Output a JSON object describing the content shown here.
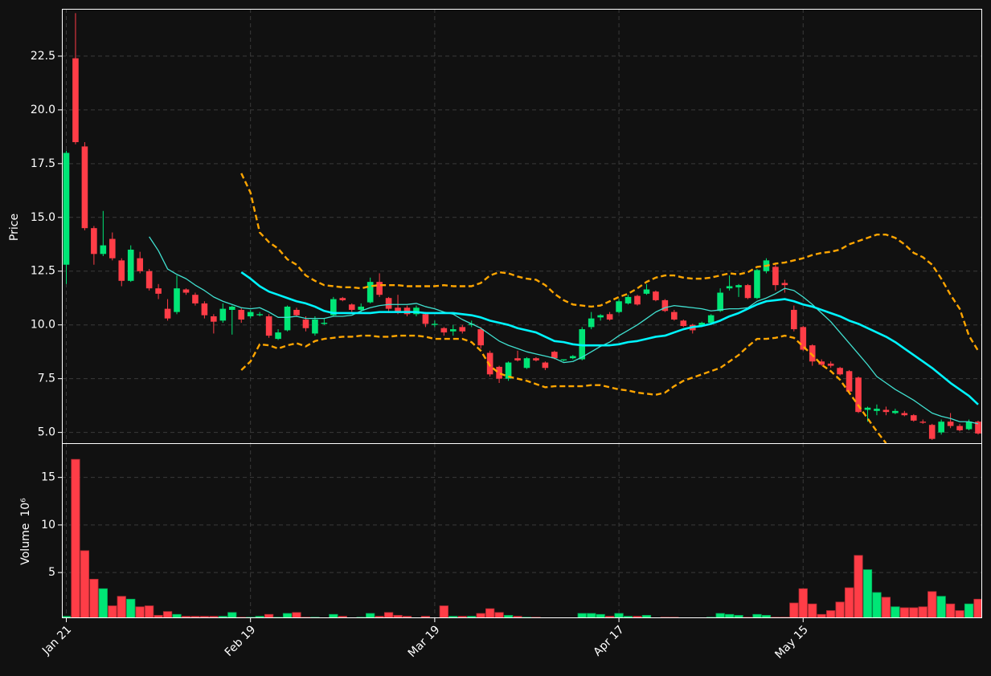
{
  "chart_data": {
    "type": "candlestick",
    "categories": [
      "Jan 21",
      null,
      null,
      null,
      null,
      null,
      null,
      null,
      null,
      null,
      null,
      null,
      null,
      null,
      null,
      null,
      null,
      null,
      null,
      null,
      "Feb 19",
      null,
      null,
      null,
      null,
      null,
      null,
      null,
      null,
      null,
      null,
      null,
      null,
      null,
      null,
      null,
      null,
      null,
      null,
      null,
      "Mar 19",
      null,
      null,
      null,
      null,
      null,
      null,
      null,
      null,
      null,
      null,
      null,
      null,
      null,
      null,
      null,
      null,
      null,
      null,
      null,
      "Apr 17",
      null,
      null,
      null,
      null,
      null,
      null,
      null,
      null,
      null,
      null,
      null,
      null,
      null,
      null,
      null,
      null,
      null,
      null,
      null,
      "May 15",
      null,
      null,
      null,
      null,
      null,
      null,
      null,
      null,
      null,
      null,
      null,
      null,
      null,
      null,
      null,
      null,
      null,
      null,
      null
    ],
    "open": [
      12.8,
      22.4,
      18.3,
      14.5,
      13.3,
      14.0,
      13.0,
      12.05,
      13.1,
      12.5,
      11.7,
      10.75,
      10.6,
      11.65,
      11.4,
      11.0,
      10.4,
      10.2,
      10.7,
      10.7,
      10.4,
      10.45,
      10.4,
      9.35,
      9.75,
      10.7,
      10.25,
      9.6,
      10.05,
      10.45,
      11.25,
      10.95,
      10.7,
      11.05,
      12.0,
      11.25,
      10.8,
      10.8,
      10.5,
      10.5,
      10.0,
      9.85,
      9.7,
      9.9,
      10.0,
      9.8,
      8.7,
      8.05,
      7.5,
      8.45,
      8.0,
      8.45,
      8.25,
      8.75,
      8.35,
      8.45,
      8.4,
      9.9,
      10.35,
      10.5,
      10.6,
      11.0,
      11.35,
      11.45,
      11.55,
      11.15,
      10.6,
      10.2,
      10.0,
      9.95,
      10.1,
      10.65,
      11.7,
      11.75,
      11.85,
      11.25,
      12.5,
      12.7,
      11.95,
      10.7,
      9.9,
      9.05,
      8.3,
      8.2,
      8.0,
      7.85,
      7.55,
      6.05,
      6.0,
      6.05,
      5.9,
      5.9,
      5.8,
      5.5,
      5.35,
      5.0,
      5.5,
      5.3,
      5.15,
      5.5
    ],
    "high": [
      18.1,
      24.5,
      18.5,
      14.6,
      15.3,
      14.3,
      13.1,
      13.7,
      13.4,
      12.6,
      11.9,
      11.2,
      12.3,
      11.7,
      11.5,
      11.1,
      10.5,
      11.0,
      10.9,
      10.8,
      10.7,
      10.6,
      10.5,
      9.8,
      10.9,
      10.8,
      10.4,
      10.4,
      10.3,
      11.3,
      11.3,
      11.0,
      11.0,
      12.2,
      12.4,
      11.3,
      11.4,
      10.9,
      10.9,
      10.6,
      10.2,
      9.9,
      10.0,
      10.0,
      10.2,
      9.9,
      8.8,
      8.1,
      8.3,
      8.8,
      8.5,
      8.5,
      8.3,
      8.8,
      8.4,
      8.6,
      9.9,
      10.6,
      10.5,
      10.6,
      11.2,
      11.4,
      11.4,
      11.9,
      11.6,
      11.2,
      10.7,
      10.25,
      10.05,
      10.15,
      10.5,
      11.7,
      12.3,
      11.9,
      11.9,
      12.6,
      13.1,
      12.9,
      12.1,
      10.9,
      9.95,
      9.1,
      8.4,
      8.3,
      8.05,
      7.9,
      7.6,
      6.2,
      6.3,
      6.2,
      6.1,
      6.0,
      5.85,
      5.6,
      5.4,
      5.6,
      5.9,
      5.4,
      5.6,
      5.55
    ],
    "low": [
      11.9,
      18.4,
      14.4,
      12.8,
      13.2,
      13.0,
      11.8,
      12.0,
      12.4,
      11.6,
      11.2,
      10.2,
      10.5,
      11.4,
      10.9,
      10.3,
      9.6,
      10.1,
      9.55,
      10.1,
      10.3,
      10.4,
      9.4,
      9.3,
      9.7,
      10.4,
      9.7,
      9.5,
      10.0,
      10.4,
      11.1,
      10.6,
      10.6,
      11.0,
      11.3,
      10.6,
      10.5,
      10.4,
      10.4,
      9.9,
      9.9,
      9.5,
      9.5,
      9.6,
      9.9,
      8.9,
      7.6,
      7.3,
      7.4,
      8.3,
      7.95,
      8.3,
      7.9,
      8.4,
      8.3,
      8.4,
      8.35,
      9.8,
      10.2,
      10.2,
      10.55,
      10.95,
      10.9,
      11.4,
      11.1,
      10.6,
      10.2,
      9.9,
      9.6,
      9.9,
      10.05,
      10.6,
      11.6,
      11.3,
      11.2,
      11.2,
      12.4,
      11.6,
      11.5,
      9.7,
      8.8,
      8.1,
      8.1,
      8.0,
      7.65,
      6.8,
      5.9,
      5.5,
      5.8,
      5.8,
      5.85,
      5.75,
      5.5,
      5.4,
      4.65,
      4.9,
      5.2,
      5.05,
      5.1,
      4.9
    ],
    "close": [
      18.0,
      18.5,
      14.5,
      13.3,
      13.7,
      13.1,
      12.05,
      13.5,
      12.5,
      11.7,
      11.45,
      10.3,
      11.7,
      11.5,
      11.0,
      10.45,
      10.15,
      10.75,
      10.85,
      10.25,
      10.6,
      10.5,
      9.5,
      9.65,
      10.85,
      10.45,
      9.85,
      10.25,
      10.1,
      11.2,
      11.15,
      10.7,
      10.85,
      12.0,
      11.4,
      10.75,
      10.6,
      10.5,
      10.8,
      10.05,
      10.05,
      9.65,
      9.8,
      9.7,
      10.05,
      9.05,
      7.7,
      7.5,
      8.25,
      8.35,
      8.45,
      8.35,
      8.0,
      8.45,
      8.4,
      8.55,
      9.8,
      10.3,
      10.45,
      10.25,
      11.1,
      11.3,
      10.95,
      11.65,
      11.15,
      10.65,
      10.25,
      9.95,
      9.75,
      10.1,
      10.45,
      11.5,
      11.8,
      11.85,
      11.25,
      12.55,
      13.0,
      11.85,
      11.85,
      9.8,
      8.85,
      8.3,
      8.15,
      8.1,
      7.7,
      6.9,
      5.95,
      6.15,
      6.1,
      5.95,
      6.0,
      5.8,
      5.55,
      5.45,
      4.7,
      5.5,
      5.3,
      5.1,
      5.5,
      4.95
    ],
    "up_color": "#00e676",
    "down_color": "#ff3d47",
    "ylabel": "Price",
    "ylim": [
      4.5,
      24.7
    ],
    "yticks": [
      {
        "value": 5,
        "label": "5.0"
      },
      7.5,
      {
        "value": 10,
        "label": "10.0"
      },
      12.5,
      {
        "value": 15,
        "label": "15.0"
      },
      17.5,
      {
        "value": 20,
        "label": "20.0"
      },
      22.5
    ],
    "grid": true,
    "lines": [
      {
        "color": "#40e0d0",
        "width": 1.3,
        "dashed": false,
        "values": [
          null,
          null,
          null,
          null,
          null,
          null,
          null,
          null,
          null,
          14.1,
          13.45,
          12.6,
          12.35,
          12.15,
          11.85,
          11.6,
          11.3,
          11.1,
          10.95,
          10.8,
          10.75,
          10.8,
          10.6,
          10.35,
          10.35,
          10.4,
          10.3,
          10.3,
          10.3,
          10.4,
          10.4,
          10.45,
          10.65,
          10.8,
          10.9,
          10.95,
          10.95,
          10.95,
          11.0,
          10.85,
          10.75,
          10.6,
          10.5,
          10.25,
          10.05,
          9.85,
          9.55,
          9.25,
          9.05,
          8.9,
          8.75,
          8.65,
          8.55,
          8.45,
          8.25,
          8.3,
          8.5,
          8.75,
          9.0,
          9.2,
          9.5,
          9.75,
          10.0,
          10.3,
          10.6,
          10.8,
          10.9,
          10.85,
          10.8,
          10.75,
          10.65,
          10.7,
          10.75,
          10.75,
          10.8,
          11.1,
          11.25,
          11.45,
          11.7,
          11.6,
          11.3,
          10.95,
          10.55,
          10.15,
          9.65,
          9.15,
          8.65,
          8.15,
          7.6,
          7.3,
          7.0,
          6.75,
          6.5,
          6.2,
          5.9,
          5.75,
          5.65,
          5.5,
          5.5,
          5.4
        ]
      },
      {
        "color": "#00f5ff",
        "width": 2.6,
        "dashed": false,
        "values": [
          null,
          null,
          null,
          null,
          null,
          null,
          null,
          null,
          null,
          null,
          null,
          null,
          null,
          null,
          null,
          null,
          null,
          null,
          null,
          12.45,
          12.15,
          11.8,
          11.55,
          11.4,
          11.25,
          11.1,
          11.0,
          10.85,
          10.65,
          10.55,
          10.55,
          10.55,
          10.55,
          10.55,
          10.6,
          10.6,
          10.6,
          10.6,
          10.6,
          10.55,
          10.55,
          10.55,
          10.55,
          10.5,
          10.45,
          10.35,
          10.2,
          10.1,
          10.0,
          9.85,
          9.75,
          9.65,
          9.45,
          9.25,
          9.2,
          9.1,
          9.05,
          9.05,
          9.05,
          9.05,
          9.1,
          9.2,
          9.25,
          9.35,
          9.45,
          9.5,
          9.65,
          9.8,
          9.9,
          9.95,
          10.05,
          10.2,
          10.4,
          10.55,
          10.75,
          10.95,
          11.1,
          11.15,
          11.2,
          11.1,
          10.95,
          10.85,
          10.7,
          10.55,
          10.4,
          10.2,
          10.05,
          9.85,
          9.65,
          9.45,
          9.2,
          8.9,
          8.6,
          8.3,
          8.0,
          7.65,
          7.3,
          7.0,
          6.7,
          6.3
        ]
      },
      {
        "color": "#ffa500",
        "width": 2.4,
        "dashed": true,
        "values": [
          null,
          null,
          null,
          null,
          null,
          null,
          null,
          null,
          null,
          null,
          null,
          null,
          null,
          null,
          null,
          null,
          null,
          null,
          null,
          17.05,
          16.15,
          14.3,
          13.85,
          13.55,
          13.05,
          12.8,
          12.3,
          12.05,
          11.85,
          11.8,
          11.75,
          11.75,
          11.7,
          11.8,
          11.85,
          11.85,
          11.85,
          11.8,
          11.8,
          11.8,
          11.8,
          11.85,
          11.8,
          11.8,
          11.8,
          11.95,
          12.3,
          12.45,
          12.4,
          12.25,
          12.15,
          12.1,
          11.85,
          11.45,
          11.15,
          10.95,
          10.9,
          10.85,
          10.9,
          11.1,
          11.3,
          11.45,
          11.7,
          12.0,
          12.2,
          12.3,
          12.3,
          12.2,
          12.15,
          12.15,
          12.2,
          12.3,
          12.4,
          12.35,
          12.45,
          12.7,
          12.75,
          12.85,
          12.9,
          13.0,
          13.1,
          13.25,
          13.35,
          13.4,
          13.5,
          13.75,
          13.9,
          14.05,
          14.2,
          14.2,
          14.05,
          13.75,
          13.35,
          13.15,
          12.8,
          12.15,
          11.4,
          10.75,
          9.5,
          8.8
        ]
      },
      {
        "color": "#ffa500",
        "width": 2.4,
        "dashed": true,
        "values": [
          null,
          null,
          null,
          null,
          null,
          null,
          null,
          null,
          null,
          null,
          null,
          null,
          null,
          null,
          null,
          null,
          null,
          null,
          null,
          7.9,
          8.3,
          9.1,
          9.05,
          8.9,
          9.05,
          9.15,
          9.0,
          9.25,
          9.35,
          9.4,
          9.45,
          9.45,
          9.5,
          9.5,
          9.45,
          9.45,
          9.5,
          9.5,
          9.5,
          9.45,
          9.35,
          9.35,
          9.35,
          9.35,
          9.2,
          8.8,
          8.1,
          7.75,
          7.6,
          7.5,
          7.4,
          7.25,
          7.1,
          7.15,
          7.15,
          7.15,
          7.15,
          7.2,
          7.2,
          7.1,
          7.0,
          6.95,
          6.85,
          6.8,
          6.75,
          6.85,
          7.15,
          7.4,
          7.55,
          7.7,
          7.85,
          8.0,
          8.3,
          8.6,
          9.0,
          9.35,
          9.35,
          9.4,
          9.5,
          9.4,
          9.0,
          8.6,
          8.15,
          7.85,
          7.45,
          6.85,
          6.25,
          5.65,
          5.05,
          4.5,
          null,
          null,
          null,
          null,
          null,
          null,
          null,
          null,
          null,
          null
        ]
      }
    ],
    "volume": {
      "ylabel": "Volume",
      "scale_label": "10⁶",
      "ylim": [
        0.2,
        18.6
      ],
      "yticks": [
        5,
        10,
        15
      ],
      "values": [
        0.4,
        16.9,
        7.3,
        4.3,
        3.3,
        1.5,
        2.5,
        2.2,
        1.4,
        1.5,
        0.5,
        0.9,
        0.6,
        0.4,
        0.4,
        0.4,
        0.4,
        0.4,
        0.8,
        0.3,
        0.3,
        0.4,
        0.6,
        0.3,
        0.7,
        0.8,
        0.3,
        0.3,
        0.25,
        0.6,
        0.4,
        0.25,
        0.3,
        0.7,
        0.4,
        0.8,
        0.5,
        0.4,
        0.25,
        0.4,
        0.25,
        1.5,
        0.4,
        0.4,
        0.4,
        0.7,
        1.2,
        0.8,
        0.5,
        0.4,
        0.3,
        0.3,
        0.25,
        0.25,
        0.25,
        0.25,
        0.7,
        0.7,
        0.6,
        0.4,
        0.7,
        0.4,
        0.4,
        0.5,
        0.25,
        0.3,
        0.3,
        0.25,
        0.25,
        0.25,
        0.3,
        0.7,
        0.6,
        0.5,
        0.3,
        0.6,
        0.5,
        0.3,
        0.3,
        1.8,
        3.3,
        1.7,
        0.6,
        1.0,
        1.9,
        3.4,
        6.8,
        5.3,
        2.9,
        2.4,
        1.4,
        1.3,
        1.3,
        1.4,
        3.0,
        2.5,
        1.7,
        1.0,
        1.7,
        2.2
      ]
    }
  }
}
